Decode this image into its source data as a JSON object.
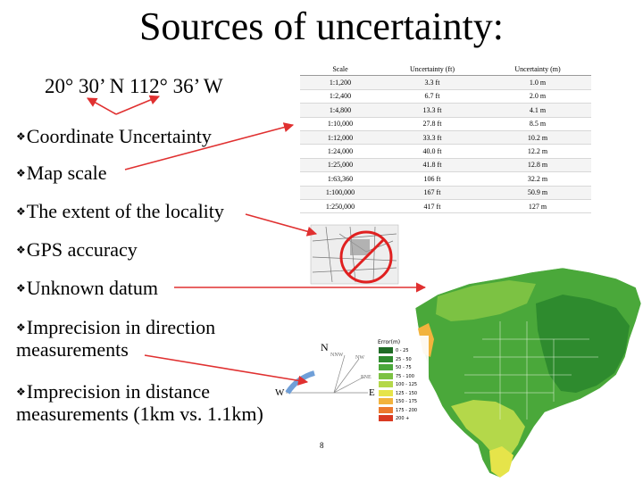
{
  "slide": {
    "title": "Sources of uncertainty:",
    "coordinate": "20° 30’ N 112° 36’ W",
    "page_number": "8"
  },
  "bullets": [
    {
      "text": "Coordinate Uncertainty"
    },
    {
      "text": "Map scale"
    },
    {
      "text": "The extent of the locality"
    },
    {
      "text": "GPS accuracy"
    },
    {
      "text": "Unknown datum"
    },
    {
      "text": "Imprecision in direction",
      "text2": "measurements"
    },
    {
      "text": "Imprecision in distance",
      "text2": "measurements (1km vs. 1.1km)"
    }
  ],
  "table": {
    "headers": [
      "Scale",
      "Uncertainty (ft)",
      "Uncertainty (m)"
    ],
    "rows": [
      [
        "1:1,200",
        "3.3 ft",
        "1.0 m"
      ],
      [
        "1:2,400",
        "6.7 ft",
        "2.0 m"
      ],
      [
        "1:4,800",
        "13.3 ft",
        "4.1 m"
      ],
      [
        "1:10,000",
        "27.8 ft",
        "8.5 m"
      ],
      [
        "1:12,000",
        "33.3 ft",
        "10.2 m"
      ],
      [
        "1:24,000",
        "40.0 ft",
        "12.2 m"
      ],
      [
        "1:25,000",
        "41.8 ft",
        "12.8 m"
      ],
      [
        "1:63,360",
        "106 ft",
        "32.2 m"
      ],
      [
        "1:100,000",
        "167 ft",
        "50.9 m"
      ],
      [
        "1:250,000",
        "417 ft",
        "127 m"
      ]
    ]
  },
  "compass": {
    "n": "N",
    "nnw": "NNW",
    "nw": "NW",
    "ene": "ENE",
    "w": "W",
    "e": "E"
  },
  "map": {
    "legend_title": "Error(m)",
    "legend": [
      {
        "label": "0 - 25",
        "color": "#1f6b25"
      },
      {
        "label": "25 - 50",
        "color": "#2e8b2e"
      },
      {
        "label": "50 - 75",
        "color": "#4aa83a"
      },
      {
        "label": "75 - 100",
        "color": "#7cc243"
      },
      {
        "label": "100 - 125",
        "color": "#b4d84a"
      },
      {
        "label": "125 - 150",
        "color": "#e6e44a"
      },
      {
        "label": "150 - 175",
        "color": "#f2b33d"
      },
      {
        "label": "175 - 200",
        "color": "#ec7a2e"
      },
      {
        "label": "200 +",
        "color": "#d93a22"
      }
    ]
  },
  "colors": {
    "arrow": "#e03030",
    "circle": "#e02020",
    "map_green": "#3a9a3a"
  }
}
